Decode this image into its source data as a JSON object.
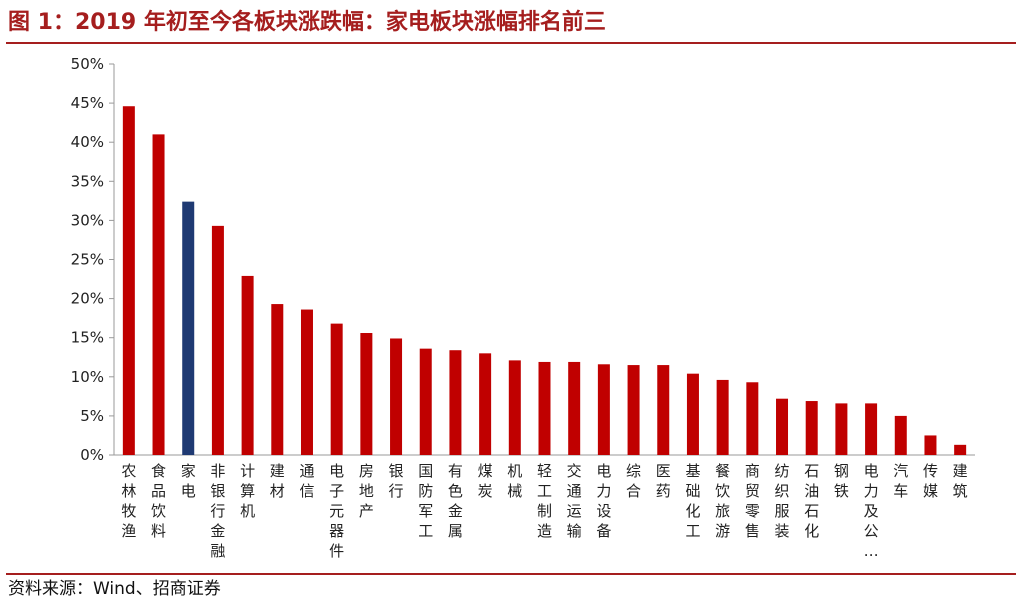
{
  "header": {
    "title": "图 1：2019 年初至今各板块涨跌幅：家电板块涨幅排名前三"
  },
  "footer": {
    "source": "资料来源：Wind、招商证券"
  },
  "colors": {
    "bar": "#c00000",
    "highlight": "#1f3a73",
    "rule": "#a51e1e",
    "axis": "#999999"
  },
  "chart_data": {
    "type": "bar",
    "title": "图 1：2019 年初至今各板块涨跌幅：家电板块涨幅排名前三",
    "xlabel": "",
    "ylabel": "",
    "ylim": [
      0,
      50
    ],
    "yticks": [
      "0%",
      "5%",
      "10%",
      "15%",
      "20%",
      "25%",
      "30%",
      "35%",
      "40%",
      "45%",
      "50%"
    ],
    "grid": false,
    "legend": "none",
    "highlight_category": "家电",
    "categories": [
      "农林牧渔",
      "食品饮料",
      "家电",
      "非银行金融",
      "计算机",
      "建材",
      "通信",
      "电子元器件",
      "房地产",
      "银行",
      "国防军工",
      "有色金属",
      "煤炭",
      "机械",
      "轻工制造",
      "交通运输",
      "电力设备",
      "综合",
      "医药",
      "基础化工",
      "餐饮旅游",
      "商贸零售",
      "纺织服装",
      "石油石化",
      "钢铁",
      "电力及公…",
      "汽车",
      "传媒",
      "建筑"
    ],
    "values": [
      44.6,
      41.0,
      32.4,
      29.3,
      22.9,
      19.3,
      18.6,
      16.8,
      15.6,
      14.9,
      13.6,
      13.4,
      13.0,
      12.1,
      11.9,
      11.9,
      11.6,
      11.5,
      11.5,
      10.4,
      9.6,
      9.3,
      7.2,
      6.9,
      6.6,
      6.6,
      5.0,
      2.5,
      1.3
    ]
  }
}
